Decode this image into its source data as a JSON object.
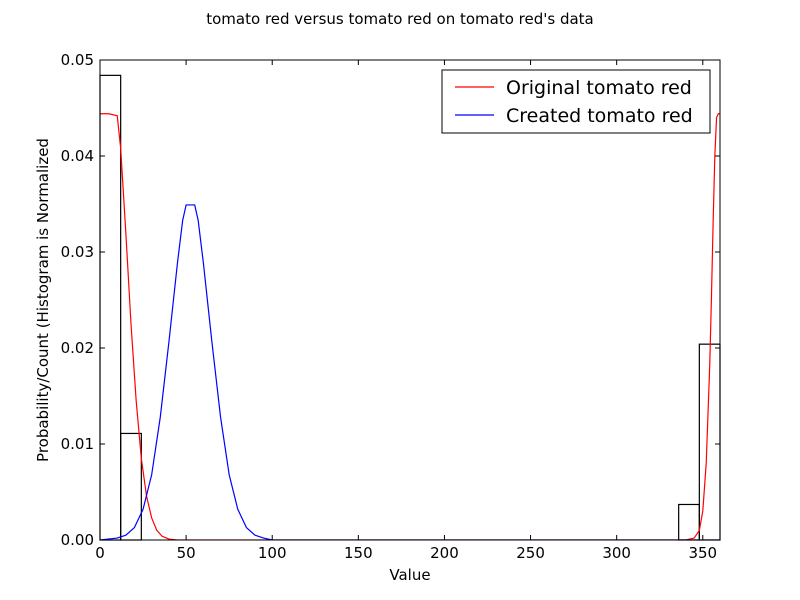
{
  "chart_data": {
    "type": "line",
    "title": "tomato red versus tomato red on tomato red's data",
    "xlabel": "Value",
    "ylabel": "Probability/Count (Histogram is Normalized",
    "xlim": [
      0,
      360
    ],
    "ylim": [
      0,
      0.05
    ],
    "x_ticks": [
      "0",
      "50",
      "100",
      "150",
      "200",
      "250",
      "300",
      "350"
    ],
    "y_ticks": [
      "0.00",
      "0.01",
      "0.02",
      "0.03",
      "0.04",
      "0.05"
    ],
    "grid": false,
    "legend_position": "top-right",
    "histogram": {
      "bins": [
        {
          "x0": 0,
          "x1": 12,
          "value": 0.0484
        },
        {
          "x0": 12,
          "x1": 24,
          "value": 0.0111
        },
        {
          "x0": 336,
          "x1": 348,
          "value": 0.0037
        },
        {
          "x0": 348,
          "x1": 360,
          "value": 0.0204
        }
      ],
      "edge_color": "#000000"
    },
    "series": [
      {
        "name": "Original tomato red",
        "color": "#ff0000",
        "x": [
          0,
          5,
          10,
          12,
          15,
          18,
          21,
          24,
          27,
          30,
          33,
          36,
          40,
          45,
          50,
          60,
          80,
          100,
          150,
          200,
          250,
          300,
          330,
          340,
          345,
          348,
          350,
          352,
          354,
          355,
          356,
          357,
          358,
          359,
          360
        ],
        "y": [
          0.0444,
          0.0444,
          0.0442,
          0.0408,
          0.032,
          0.0225,
          0.0145,
          0.0085,
          0.0046,
          0.0023,
          0.001,
          0.0004,
          0.0001,
          0.0,
          0.0,
          0.0,
          0.0,
          0.0,
          0.0,
          0.0,
          0.0,
          0.0,
          0.0,
          0.0,
          0.0002,
          0.001,
          0.003,
          0.008,
          0.018,
          0.025,
          0.033,
          0.04,
          0.044,
          0.0444,
          0.0444
        ]
      },
      {
        "name": "Created tomato red",
        "color": "#0000ff",
        "x": [
          0,
          10,
          15,
          20,
          25,
          30,
          35,
          40,
          45,
          48,
          50,
          55,
          57,
          60,
          65,
          70,
          75,
          80,
          85,
          90,
          95,
          100,
          110,
          150,
          200,
          250,
          300,
          360
        ],
        "y": [
          0.0,
          0.0002,
          0.0005,
          0.0013,
          0.0032,
          0.0068,
          0.0128,
          0.0206,
          0.0289,
          0.0333,
          0.0349,
          0.0349,
          0.0333,
          0.0289,
          0.0206,
          0.0128,
          0.0068,
          0.0032,
          0.0013,
          0.0005,
          0.0002,
          0.0,
          0.0,
          0.0,
          0.0,
          0.0,
          0.0,
          0.0
        ]
      }
    ]
  }
}
